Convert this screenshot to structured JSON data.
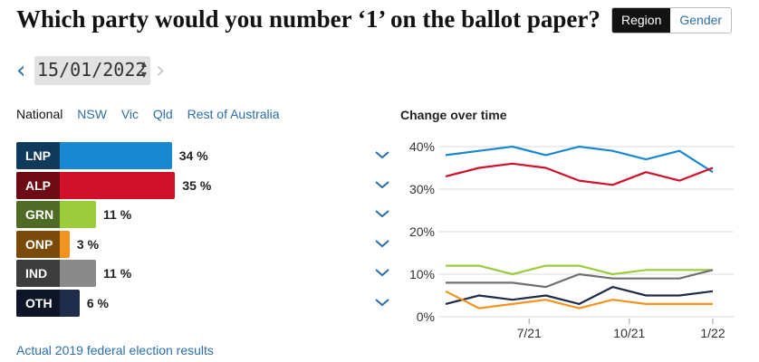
{
  "title": "Which party would you number ‘1’ on the ballot paper?",
  "toggle": {
    "region_label": "Region",
    "gender_label": "Gender"
  },
  "date": {
    "value": "15/01/2022"
  },
  "regions": [
    "National",
    "NSW",
    "Vic",
    "Qld",
    "Rest of Australia"
  ],
  "parties": [
    {
      "code": "LNP",
      "value": 34,
      "display": "34 %",
      "main_color": "#1a88d0",
      "label_color": "#103a5c"
    },
    {
      "code": "ALP",
      "value": 35,
      "display": "35 %",
      "main_color": "#d0112b",
      "label_color": "#6e0a15"
    },
    {
      "code": "GRN",
      "value": 11,
      "display": "11 %",
      "main_color": "#9ccb3b",
      "label_color": "#4e6a24"
    },
    {
      "code": "ONP",
      "value": 3,
      "display": "3 %",
      "main_color": "#f4931e",
      "label_color": "#7a4a0a"
    },
    {
      "code": "IND",
      "value": 11,
      "display": "11 %",
      "main_color": "#8a8a8a",
      "label_color": "#3c3c3c"
    },
    {
      "code": "OTH",
      "value": 6,
      "display": "6 %",
      "main_color": "#1e2c4a",
      "label_color": "#0e1526"
    }
  ],
  "footer_link": "Actual 2019 federal election results",
  "chart_data": {
    "type": "line",
    "title": "Change over time",
    "x": [
      0,
      1,
      2,
      3,
      4,
      5,
      6,
      7,
      8
    ],
    "x_tick_labels": [
      {
        "index": 2.5,
        "label": "7/21"
      },
      {
        "index": 5.5,
        "label": "10/21"
      },
      {
        "index": 8.0,
        "label": "1/22"
      }
    ],
    "ylim": [
      0,
      40
    ],
    "yticks": [
      0,
      10,
      20,
      30,
      40
    ],
    "ytick_labels": [
      "0%",
      "10%",
      "20%",
      "30%",
      "40%"
    ],
    "grid": true,
    "series": [
      {
        "code": "LNP",
        "color": "#1a88d0",
        "values": [
          38,
          39,
          40,
          38,
          40,
          39,
          37,
          39,
          34
        ]
      },
      {
        "code": "ALP",
        "color": "#d0112b",
        "values": [
          33,
          35,
          36,
          35,
          32,
          31,
          34,
          32,
          35
        ]
      },
      {
        "code": "GRN",
        "color": "#9ccb3b",
        "values": [
          12,
          12,
          10,
          12,
          12,
          10,
          11,
          11,
          11
        ]
      },
      {
        "code": "IND",
        "color": "#707070",
        "values": [
          8,
          8,
          8,
          7,
          10,
          9,
          9,
          9,
          11
        ]
      },
      {
        "code": "OTH",
        "color": "#1e2c4a",
        "values": [
          3,
          5,
          4,
          5,
          3,
          7,
          5,
          5,
          6
        ]
      },
      {
        "code": "ONP",
        "color": "#f4931e",
        "values": [
          6,
          2,
          3,
          4,
          2,
          4,
          3,
          3,
          3
        ]
      }
    ]
  }
}
